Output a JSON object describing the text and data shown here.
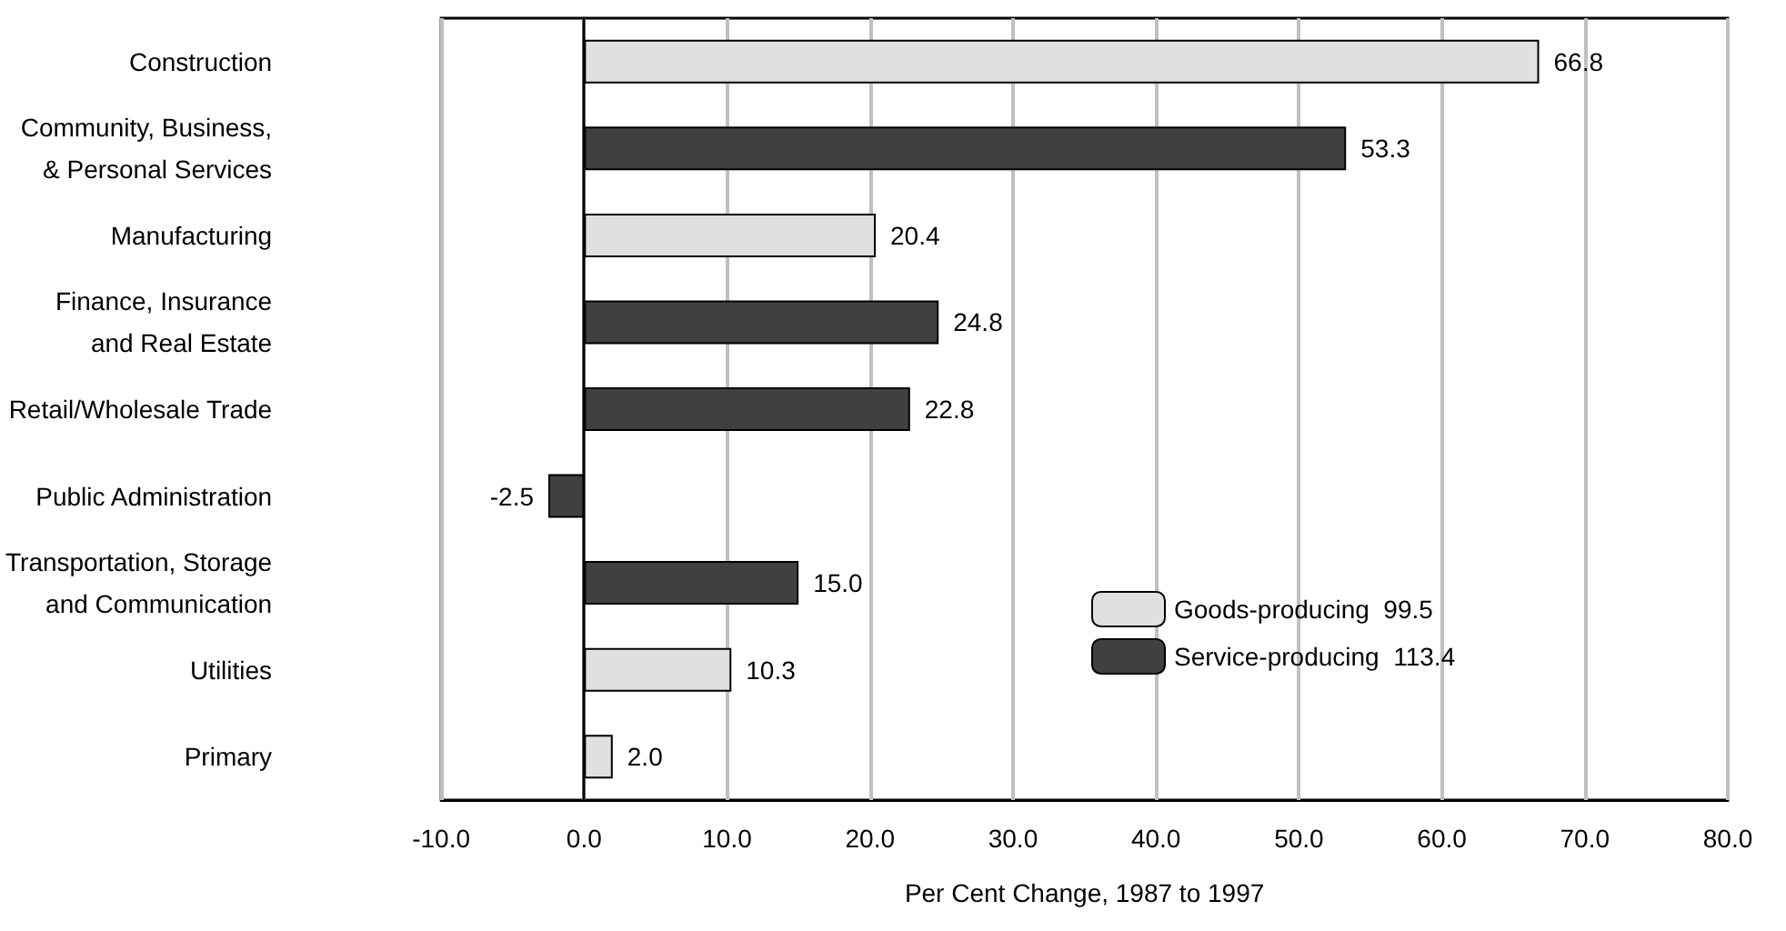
{
  "chart_data": {
    "type": "bar",
    "orientation": "horizontal",
    "xlabel": "Per Cent Change, 1987 to 1997",
    "categories": [
      "Construction",
      "Community, Business,\n& Personal Services",
      "Manufacturing",
      "Finance, Insurance\nand Real Estate",
      "Retail/Wholesale Trade",
      "Public Administration",
      "Transportation, Storage\nand Communication",
      "Utilities",
      "Primary"
    ],
    "series": [
      {
        "name": "Goods-producing  99.5",
        "color": "#e0e0e0",
        "values": [
          66.8,
          null,
          20.4,
          null,
          null,
          null,
          null,
          10.3,
          2.0
        ],
        "value_labels": [
          "66.8",
          null,
          "20.4",
          null,
          null,
          null,
          null,
          "10.3",
          "2.0"
        ]
      },
      {
        "name": "Service-producing  113.4",
        "color": "#404040",
        "values": [
          null,
          53.3,
          null,
          24.8,
          22.8,
          -2.5,
          15.0,
          null,
          null
        ],
        "value_labels": [
          null,
          "53.3",
          null,
          "24.8",
          "22.8",
          "-2.5",
          "15.0",
          null,
          null
        ]
      }
    ],
    "xlim": [
      -10,
      80
    ],
    "xticks": [
      {
        "value": -10,
        "label": "-10.0"
      },
      {
        "value": 0,
        "label": "0.0"
      },
      {
        "value": 10,
        "label": "10.0"
      },
      {
        "value": 20,
        "label": "20.0"
      },
      {
        "value": 30,
        "label": "30.0"
      },
      {
        "value": 40,
        "label": "40.0"
      },
      {
        "value": 50,
        "label": "50.0"
      },
      {
        "value": 60,
        "label": "60.0"
      },
      {
        "value": 70,
        "label": "70.0"
      },
      {
        "value": 80,
        "label": "80.0"
      }
    ],
    "grid": "x",
    "legend": "bottom right"
  }
}
